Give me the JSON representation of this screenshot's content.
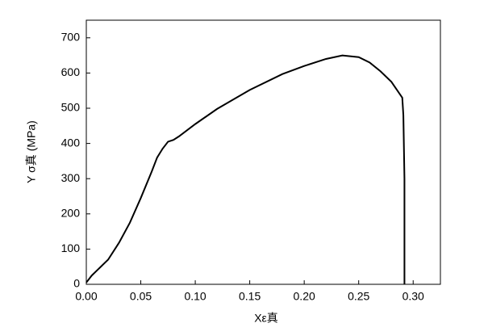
{
  "chart_data": {
    "type": "line",
    "x_label": "Xε真",
    "y_label": "Y σ真  (MPa)",
    "xlim": [
      0,
      0.325
    ],
    "ylim": [
      0,
      750
    ],
    "xticks": [
      {
        "value": 0,
        "label": "0.00"
      },
      0.05,
      {
        "value": 0.1,
        "label": "0.10"
      },
      0.15,
      {
        "value": 0.2,
        "label": "0.20"
      },
      0.25,
      {
        "value": 0.3,
        "label": "0.30"
      }
    ],
    "yticks": [
      0,
      100,
      200,
      300,
      400,
      500,
      600,
      700
    ],
    "series": [
      {
        "color": "#000000",
        "x": [
          0,
          0.005,
          0.01,
          0.02,
          0.03,
          0.04,
          0.05,
          0.06,
          0.065,
          0.07,
          0.075,
          0.08,
          0.085,
          0.1,
          0.12,
          0.15,
          0.18,
          0.2,
          0.22,
          0.235,
          0.25,
          0.26,
          0.27,
          0.28,
          0.29,
          0.291,
          0.292,
          0.292
        ],
        "values": [
          5,
          25,
          40,
          70,
          118,
          175,
          245,
          320,
          360,
          385,
          405,
          410,
          420,
          455,
          498,
          552,
          597,
          620,
          640,
          650,
          645,
          630,
          605,
          575,
          530,
          480,
          300,
          0
        ]
      }
    ]
  }
}
